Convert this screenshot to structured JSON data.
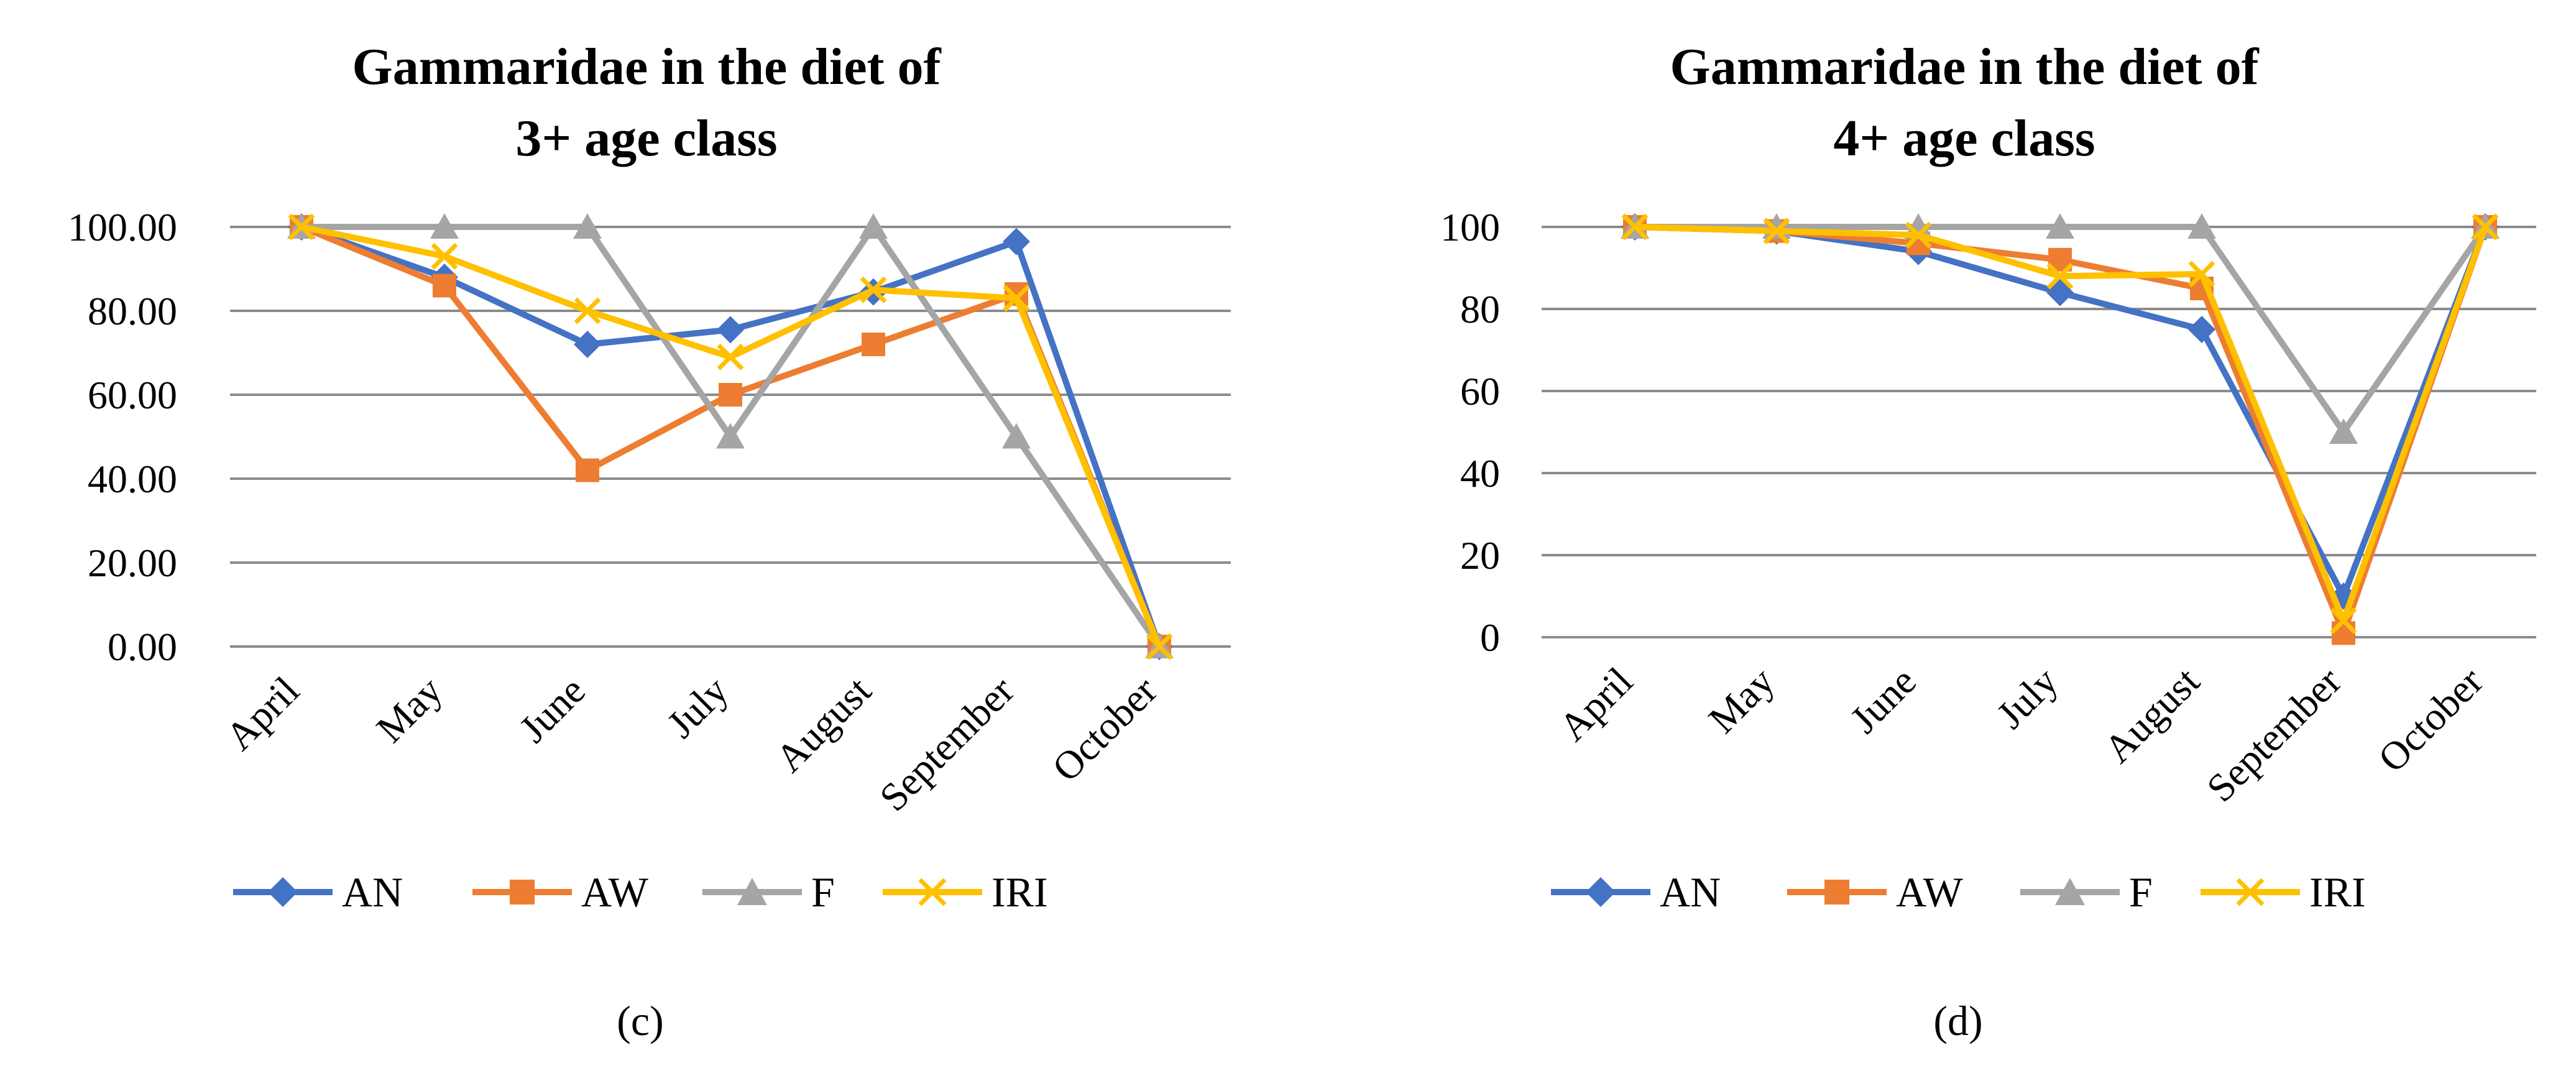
{
  "chart_data": [
    {
      "type": "line",
      "title": [
        "Gammaridae in the diet of",
        "3+ age class"
      ],
      "panel_label": "(c)",
      "categories": [
        "April",
        "May",
        "June",
        "July",
        "August",
        "September",
        "October"
      ],
      "ylim": [
        0,
        100
      ],
      "yticks": [
        "0.00",
        "20.00",
        "40.00",
        "60.00",
        "80.00",
        "100.00"
      ],
      "grid": true,
      "legend_position": "bottom",
      "series": [
        {
          "name": "AN",
          "color": "#4472C4",
          "marker": "diamond",
          "values": [
            100,
            88,
            72,
            75.5,
            84.5,
            96.5,
            0
          ]
        },
        {
          "name": "AW",
          "color": "#ED7D31",
          "marker": "square",
          "values": [
            100,
            86,
            42,
            60,
            72,
            84,
            0
          ]
        },
        {
          "name": "F",
          "color": "#A5A5A5",
          "marker": "triangle",
          "values": [
            100,
            100,
            100,
            50,
            100,
            50,
            0
          ]
        },
        {
          "name": "IRI",
          "color": "#FFC000",
          "marker": "x",
          "values": [
            100,
            93,
            80,
            69,
            85,
            83,
            0
          ]
        }
      ]
    },
    {
      "type": "line",
      "title": [
        "Gammaridae in the diet of",
        "4+ age class"
      ],
      "panel_label": "(d)",
      "categories": [
        "April",
        "May",
        "June",
        "July",
        "August",
        "September",
        "October"
      ],
      "ylim": [
        0,
        100
      ],
      "yticks": [
        "0",
        "20",
        "40",
        "60",
        "80",
        "100"
      ],
      "grid": true,
      "legend_position": "bottom",
      "series": [
        {
          "name": "AN",
          "color": "#4472C4",
          "marker": "diamond",
          "values": [
            100,
            99,
            94,
            84,
            75,
            10,
            100
          ]
        },
        {
          "name": "AW",
          "color": "#ED7D31",
          "marker": "square",
          "values": [
            100,
            99,
            96,
            92,
            85,
            1,
            100
          ]
        },
        {
          "name": "F",
          "color": "#A5A5A5",
          "marker": "triangle",
          "values": [
            100,
            100,
            100,
            100,
            100,
            50,
            100
          ]
        },
        {
          "name": "IRI",
          "color": "#FFC000",
          "marker": "x",
          "values": [
            100,
            99,
            98,
            88,
            88.5,
            4,
            100
          ]
        }
      ]
    }
  ]
}
